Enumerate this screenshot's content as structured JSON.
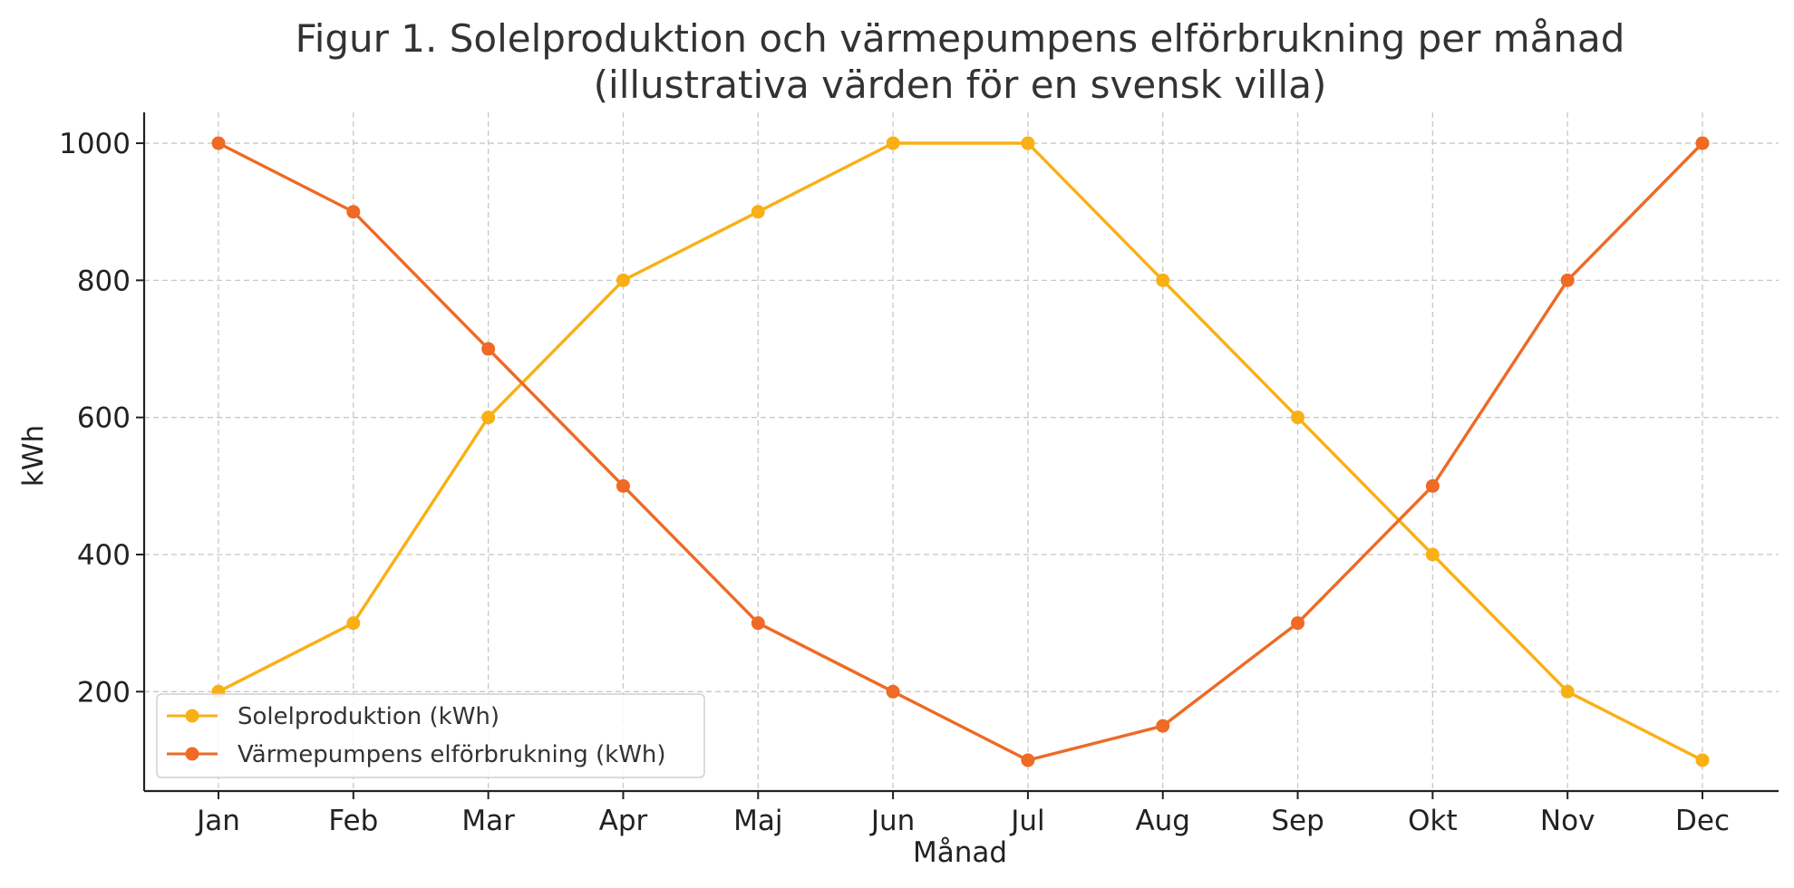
{
  "chart_data": {
    "type": "line",
    "title_lines": [
      "Figur 1. Solelproduktion och värmepumpens elförbrukning per månad",
      "(illustrativa värden för en svensk villa)"
    ],
    "xlabel": "Månad",
    "ylabel": "kWh",
    "categories": [
      "Jan",
      "Feb",
      "Mar",
      "Apr",
      "Maj",
      "Jun",
      "Jul",
      "Aug",
      "Sep",
      "Okt",
      "Nov",
      "Dec"
    ],
    "yticks": [
      200,
      400,
      600,
      800,
      1000
    ],
    "ytick_labels": [
      "200",
      "400",
      "600",
      "800",
      "1000"
    ],
    "ylim": [
      55,
      1045
    ],
    "grid": true,
    "legend_position": "bottom-left",
    "series": [
      {
        "name": "Solelproduktion (kWh)",
        "color": "#F9B014",
        "values": [
          200,
          300,
          600,
          800,
          900,
          1000,
          1000,
          800,
          600,
          400,
          200,
          100
        ]
      },
      {
        "name": "Värmepumpens elförbrukning (kWh)",
        "color": "#EE6A25",
        "values": [
          1000,
          900,
          700,
          500,
          300,
          200,
          100,
          150,
          300,
          500,
          800,
          1000
        ]
      }
    ]
  }
}
